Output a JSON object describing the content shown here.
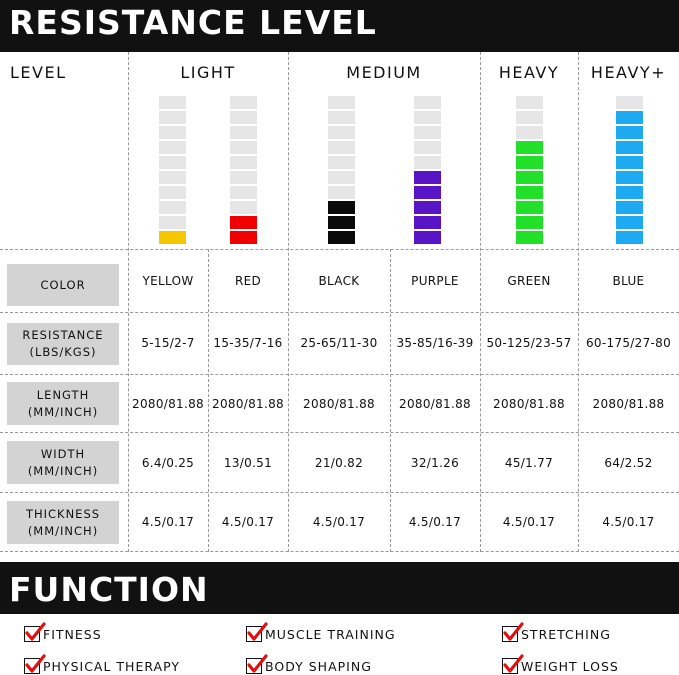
{
  "header": {
    "title": "RESISTANCE LEVEL"
  },
  "columns": {
    "level": "LEVEL",
    "light": "LIGHT",
    "medium": "MEDIUM",
    "heavy": "HEAVY",
    "heavy_plus": "HEAVY+"
  },
  "bands": [
    {
      "color_name": "YELLOW",
      "hex": "#f4c700",
      "filled": 1
    },
    {
      "color_name": "RED",
      "hex": "#f00000",
      "filled": 2
    },
    {
      "color_name": "BLACK",
      "hex": "#0a0a0a",
      "filled": 3
    },
    {
      "color_name": "PURPLE",
      "hex": "#5a14c8",
      "filled": 5
    },
    {
      "color_name": "GREEN",
      "hex": "#22e02a",
      "filled": 7
    },
    {
      "color_name": "BLUE",
      "hex": "#1eaaf0",
      "filled": 9
    }
  ],
  "rows": {
    "color": {
      "label": [
        "COLOR"
      ],
      "values": [
        "YELLOW",
        "RED",
        "BLACK",
        "PURPLE",
        "GREEN",
        "BLUE"
      ]
    },
    "resistance": {
      "label": [
        "RESISTANCE",
        "(LBS/KGS)"
      ],
      "values": [
        "5-15/2-7",
        "15-35/7-16",
        "25-65/11-30",
        "35-85/16-39",
        "50-125/23-57",
        "60-175/27-80"
      ]
    },
    "length": {
      "label": [
        "LENGTH",
        "(MM/INCH)"
      ],
      "values": [
        "2080/81.88",
        "2080/81.88",
        "2080/81.88",
        "2080/81.88",
        "2080/81.88",
        "2080/81.88"
      ]
    },
    "width": {
      "label": [
        "WIDTH",
        "(MM/INCH)"
      ],
      "values": [
        "6.4/0.25",
        "13/0.51",
        "21/0.82",
        "32/1.26",
        "45/1.77",
        "64/2.52"
      ]
    },
    "thickness": {
      "label": [
        "THICKNESS",
        "(MM/INCH)"
      ],
      "values": [
        "4.5/0.17",
        "4.5/0.17",
        "4.5/0.17",
        "4.5/0.17",
        "4.5/0.17",
        "4.5/0.17"
      ]
    }
  },
  "function": {
    "title": "FUNCTION",
    "items": [
      "FITNESS",
      "MUSCLE TRAINING",
      "STRETCHING",
      "PHYSICAL THERAPY",
      "BODY SHAPING",
      "WEIGHT LOSS"
    ]
  },
  "colors": {
    "banner": "#111111",
    "label_bg": "#d3d3d3",
    "empty_segment": "#e6e6e6",
    "check": "#e01010"
  }
}
